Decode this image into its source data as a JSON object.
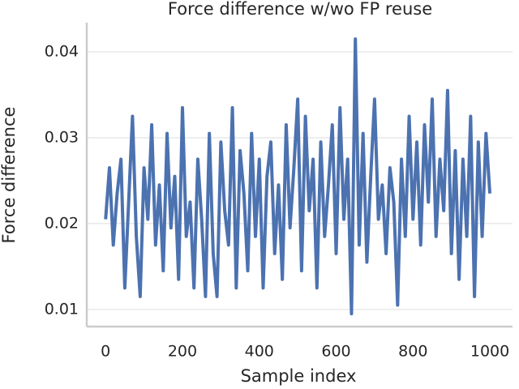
{
  "chart_data": {
    "type": "line",
    "title": "Force difference w/wo FP reuse",
    "x_label": "Sample index",
    "y_label": "Force difference",
    "x": [
      0,
      10,
      20,
      30,
      40,
      50,
      60,
      70,
      80,
      90,
      100,
      110,
      120,
      130,
      140,
      150,
      160,
      170,
      180,
      190,
      200,
      210,
      220,
      230,
      240,
      250,
      260,
      270,
      280,
      290,
      300,
      310,
      320,
      330,
      340,
      350,
      360,
      370,
      380,
      390,
      400,
      410,
      420,
      430,
      440,
      450,
      460,
      470,
      480,
      490,
      500,
      510,
      520,
      530,
      540,
      550,
      560,
      570,
      580,
      590,
      600,
      610,
      620,
      630,
      640,
      650,
      660,
      670,
      680,
      690,
      700,
      710,
      720,
      730,
      740,
      750,
      760,
      770,
      780,
      790,
      800,
      810,
      820,
      830,
      840,
      850,
      860,
      870,
      880,
      890,
      900,
      910,
      920,
      930,
      940,
      950,
      960,
      970,
      980,
      990,
      1000
    ],
    "series": [
      {
        "name": "Force difference",
        "color": "#4c72b0",
        "values": [
          0.0205,
          0.0265,
          0.0175,
          0.0235,
          0.0275,
          0.0125,
          0.0225,
          0.0325,
          0.0185,
          0.0115,
          0.0265,
          0.0205,
          0.0315,
          0.0175,
          0.0245,
          0.0145,
          0.0305,
          0.0195,
          0.0255,
          0.0135,
          0.0335,
          0.0185,
          0.0225,
          0.0125,
          0.0275,
          0.0205,
          0.0115,
          0.0305,
          0.0165,
          0.0115,
          0.0295,
          0.0215,
          0.0175,
          0.0335,
          0.0125,
          0.0285,
          0.0235,
          0.0145,
          0.0305,
          0.0185,
          0.0275,
          0.0125,
          0.0255,
          0.0295,
          0.0165,
          0.0245,
          0.0135,
          0.0315,
          0.0195,
          0.0265,
          0.0345,
          0.0145,
          0.0325,
          0.0215,
          0.0275,
          0.0125,
          0.0295,
          0.0185,
          0.0245,
          0.0315,
          0.0165,
          0.0335,
          0.0205,
          0.0275,
          0.0095,
          0.0415,
          0.0175,
          0.0305,
          0.0155,
          0.0255,
          0.0345,
          0.0205,
          0.0245,
          0.0165,
          0.0265,
          0.0225,
          0.0105,
          0.0275,
          0.0185,
          0.0325,
          0.0205,
          0.0295,
          0.0175,
          0.0315,
          0.0225,
          0.0345,
          0.0185,
          0.0275,
          0.0215,
          0.0355,
          0.0165,
          0.0285,
          0.0135,
          0.0275,
          0.0185,
          0.0325,
          0.0115,
          0.0295,
          0.0185,
          0.0305,
          0.0235
        ]
      }
    ],
    "xlim": [
      -49,
      1059
    ],
    "ylim": [
      0.008,
      0.0434
    ],
    "xticks": [
      0,
      200,
      400,
      600,
      800,
      1000
    ],
    "yticks": [
      0.01,
      0.02,
      0.03,
      0.04
    ],
    "grid": true
  }
}
